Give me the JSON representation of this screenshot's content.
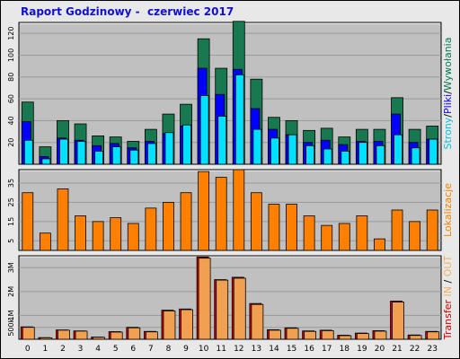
{
  "title": "Raport Godzinowy -  czerwiec 2017",
  "chart_data": [
    {
      "type": "bar",
      "name": "hits-panel",
      "categories": [
        "0",
        "1",
        "2",
        "3",
        "4",
        "5",
        "6",
        "7",
        "8",
        "9",
        "10",
        "11",
        "12",
        "13",
        "14",
        "15",
        "16",
        "17",
        "18",
        "19",
        "20",
        "21",
        "22",
        "23"
      ],
      "ylim": [
        0,
        130
      ],
      "yticks": [
        "20",
        "40",
        "60",
        "80",
        "100",
        "120"
      ],
      "ylabel_parts": [
        "Strony",
        "/",
        "Pliki",
        "/",
        "Wywołania"
      ],
      "ylabel_colors": [
        "#00c0e0",
        "#000000",
        "#0000ff",
        "#000000",
        "#007850"
      ],
      "series": [
        {
          "name": "Wywołania",
          "color": "#187850",
          "values": [
            57,
            16,
            40,
            37,
            26,
            25,
            21,
            32,
            46,
            55,
            115,
            88,
            131,
            78,
            43,
            40,
            31,
            33,
            25,
            32,
            32,
            61,
            32,
            35
          ]
        },
        {
          "name": "Pliki",
          "color": "#0000ff",
          "values": [
            39,
            7,
            24,
            22,
            17,
            19,
            15,
            21,
            28,
            35,
            88,
            64,
            87,
            51,
            32,
            27,
            20,
            22,
            18,
            21,
            21,
            46,
            20,
            23
          ]
        },
        {
          "name": "Strony",
          "color": "#00e0ff",
          "values": [
            22,
            5,
            23,
            21,
            12,
            16,
            13,
            19,
            29,
            36,
            63,
            44,
            82,
            32,
            24,
            27,
            17,
            14,
            12,
            20,
            17,
            27,
            15,
            23
          ]
        }
      ]
    },
    {
      "type": "bar",
      "name": "visits-panel",
      "categories": [
        "0",
        "1",
        "2",
        "3",
        "4",
        "5",
        "6",
        "7",
        "8",
        "9",
        "10",
        "11",
        "12",
        "13",
        "14",
        "15",
        "16",
        "17",
        "18",
        "19",
        "20",
        "21",
        "22",
        "23"
      ],
      "ylim": [
        0,
        42
      ],
      "yticks": [
        "5",
        "15",
        "25",
        "35"
      ],
      "ylabel_parts": [
        "Lokalizacje"
      ],
      "ylabel_colors": [
        "#f08000"
      ],
      "series": [
        {
          "name": "Lokalizacje",
          "color": "#ff8000",
          "values": [
            30,
            9,
            32,
            18,
            15,
            17,
            14,
            22,
            25,
            30,
            41,
            38,
            42,
            30,
            24,
            24,
            18,
            13,
            14,
            18,
            6,
            21,
            15,
            21
          ]
        }
      ]
    },
    {
      "type": "bar",
      "name": "transfer-panel",
      "categories": [
        "0",
        "1",
        "2",
        "3",
        "4",
        "5",
        "6",
        "7",
        "8",
        "9",
        "10",
        "11",
        "12",
        "13",
        "14",
        "15",
        "16",
        "17",
        "18",
        "19",
        "20",
        "21",
        "22",
        "23"
      ],
      "ylim": [
        0,
        3500
      ],
      "yticks": [
        "500k",
        "1M",
        "2M",
        "3M"
      ],
      "ytick_values": [
        500,
        1000,
        2000,
        3000
      ],
      "ylabel_parts": [
        "Transfer",
        " IN ",
        "/",
        " OUT"
      ],
      "ylabel_colors": [
        "#d00000",
        "#f0b060",
        "#000000",
        "#f0b060"
      ],
      "series": [
        {
          "name": "IN",
          "color": "#e00000",
          "values": [
            520,
            70,
            390,
            350,
            90,
            320,
            500,
            330,
            1220,
            1270,
            3450,
            2500,
            2600,
            1500,
            400,
            480,
            350,
            380,
            170,
            260,
            360,
            1600,
            180,
            330
          ]
        },
        {
          "name": "OUT",
          "color": "#f0a050",
          "values": [
            500,
            60,
            380,
            340,
            80,
            300,
            480,
            310,
            1190,
            1240,
            3400,
            2480,
            2560,
            1460,
            380,
            460,
            330,
            360,
            150,
            240,
            340,
            1560,
            160,
            310
          ]
        }
      ]
    }
  ]
}
